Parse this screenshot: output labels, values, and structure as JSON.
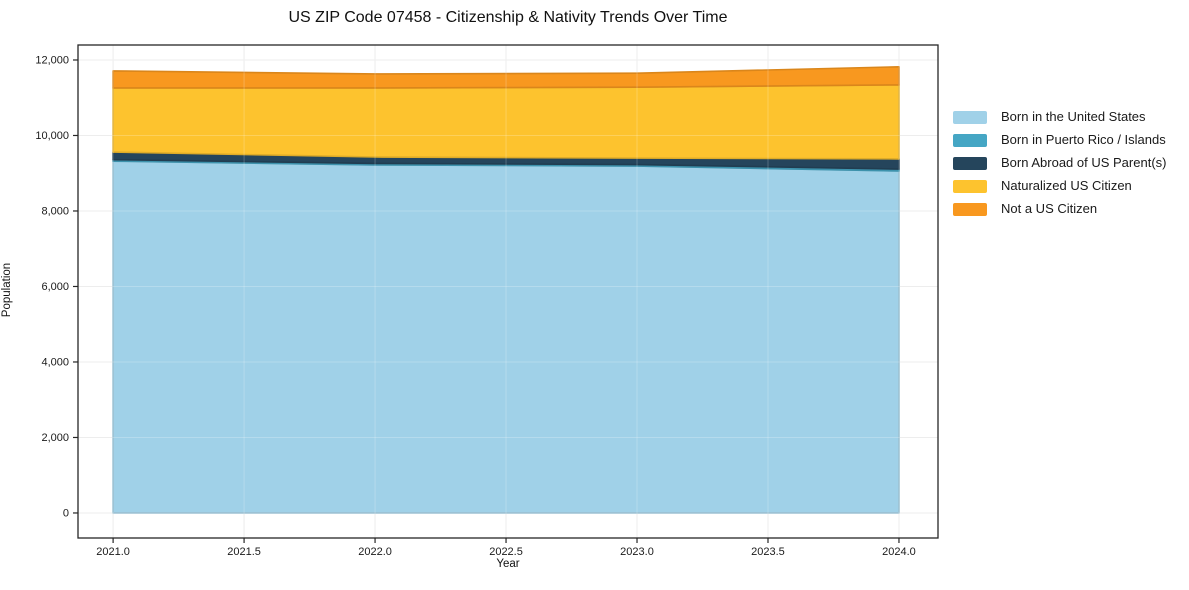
{
  "chart_data": {
    "type": "area",
    "stacked": true,
    "title": "US ZIP Code 07458 - Citizenship & Nativity Trends Over Time",
    "xlabel": "Year",
    "ylabel": "Population",
    "x": [
      2021,
      2022,
      2023,
      2024
    ],
    "series": [
      {
        "name": "Born in the United States",
        "color": "#a0d1e8",
        "values": [
          9320,
          9220,
          9190,
          9060
        ]
      },
      {
        "name": "Born in Puerto Rico / Islands",
        "color": "#45a6c4",
        "values": [
          40,
          40,
          40,
          50
        ]
      },
      {
        "name": "Born Abroad of US Parent(s)",
        "color": "#25455c",
        "values": [
          200,
          170,
          170,
          270
        ]
      },
      {
        "name": "Naturalized US Citizen",
        "color": "#fdc32e",
        "values": [
          1700,
          1830,
          1880,
          1960
        ]
      },
      {
        "name": "Not a US Citizen",
        "color": "#f8981f",
        "values": [
          450,
          370,
          370,
          480
        ]
      }
    ],
    "totals": [
      11710,
      11630,
      11650,
      11820
    ],
    "xlim": [
      2020.866,
      2024.149
    ],
    "ylim": [
      -663,
      12397
    ],
    "xticks": {
      "values": [
        2021.0,
        2021.5,
        2022.0,
        2022.5,
        2023.0,
        2023.5,
        2024.0
      ],
      "labels": [
        "2021.0",
        "2021.5",
        "2022.0",
        "2022.5",
        "2023.0",
        "2023.5",
        "2024.0"
      ]
    },
    "yticks": {
      "values": [
        0,
        2000,
        4000,
        6000,
        8000,
        10000,
        12000
      ],
      "labels": [
        "0",
        "2,000",
        "4,000",
        "6,000",
        "8,000",
        "10,000",
        "12,000"
      ]
    },
    "grid": true,
    "legend_position": "right",
    "style": {
      "grid_color": "#e8e8e8",
      "spine_color": "#262626",
      "tick_color": "#262626",
      "text_color": "#1a1a1a"
    }
  }
}
